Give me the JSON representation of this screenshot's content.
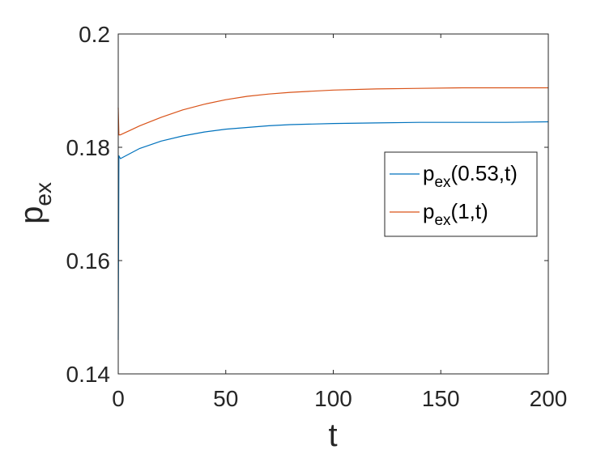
{
  "chart_data": {
    "type": "line",
    "xlabel": "t",
    "ylabel": {
      "main": "p",
      "sub": "ex"
    },
    "xlim": [
      0,
      200
    ],
    "ylim": [
      0.14,
      0.2
    ],
    "xticks": [
      0,
      50,
      100,
      150,
      200
    ],
    "xtick_labels": [
      "0",
      "50",
      "100",
      "150",
      "200"
    ],
    "yticks": [
      0.14,
      0.16,
      0.18,
      0.2
    ],
    "ytick_labels": [
      "0.14",
      "0.16",
      "0.18",
      "0.2"
    ],
    "grid": false,
    "box": true,
    "legend_position": "right",
    "series": [
      {
        "name": "p_ex(0.53,t)",
        "legend": {
          "main": "p",
          "sub": "ex",
          "tail": "(0.53,t)"
        },
        "color": "#0072BD",
        "x": [
          0,
          0.3,
          1,
          5,
          10,
          20,
          30,
          40,
          50,
          60,
          70,
          80,
          90,
          100,
          120,
          140,
          160,
          180,
          200
        ],
        "y": [
          0.146,
          0.1785,
          0.178,
          0.1788,
          0.1798,
          0.1811,
          0.182,
          0.1827,
          0.1832,
          0.1835,
          0.1838,
          0.184,
          0.1841,
          0.1842,
          0.1843,
          0.1844,
          0.1844,
          0.1844,
          0.1845
        ]
      },
      {
        "name": "p_ex(1,t)",
        "legend": {
          "main": "p",
          "sub": "ex",
          "tail": "(1,t)"
        },
        "color": "#D95319",
        "x": [
          0,
          0.3,
          1,
          5,
          10,
          20,
          30,
          40,
          50,
          60,
          70,
          80,
          90,
          100,
          120,
          140,
          160,
          180,
          200
        ],
        "y": [
          0.187,
          0.1822,
          0.1822,
          0.1829,
          0.1838,
          0.1853,
          0.1866,
          0.1876,
          0.1884,
          0.189,
          0.1894,
          0.1897,
          0.1899,
          0.1901,
          0.1903,
          0.1904,
          0.1905,
          0.1905,
          0.1905
        ]
      }
    ]
  }
}
